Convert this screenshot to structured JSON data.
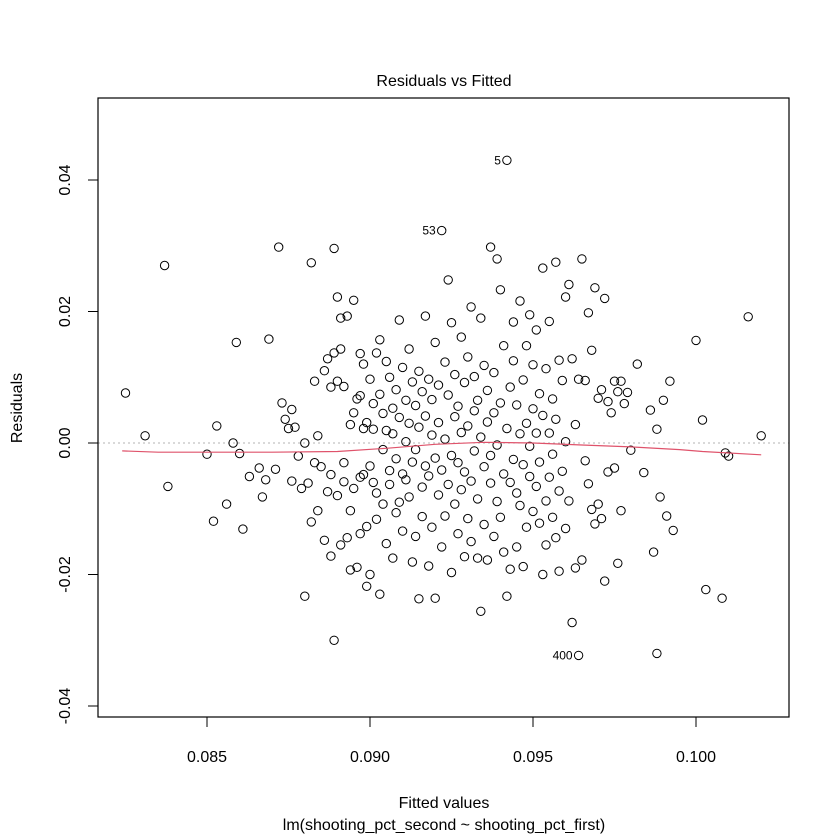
{
  "chart_data": {
    "type": "scatter",
    "title": "Residuals vs Fitted",
    "xlabel": "Fitted values",
    "sub_xlabel": "lm(shooting_pct_second ~ shooting_pct_first)",
    "ylabel": "Residuals",
    "xlim": [
      0.0823,
      0.1027
    ],
    "ylim": [
      -0.0418,
      0.0523
    ],
    "x_ticks": [
      0.085,
      0.09,
      0.095,
      0.1
    ],
    "x_tick_labels": [
      "0.085",
      "0.090",
      "0.095",
      "0.100"
    ],
    "y_ticks": [
      -0.04,
      -0.02,
      0.0,
      0.02,
      0.04
    ],
    "y_tick_labels": [
      "-0.04",
      "-0.02",
      "0.00",
      "0.02",
      "0.04"
    ],
    "grid": false,
    "reference_line": {
      "y": 0.0,
      "style": "dotted",
      "color": "#b3b3b3"
    },
    "smooth_line": {
      "color": "#DF536B",
      "x": [
        0.0824,
        0.0835,
        0.085,
        0.087,
        0.089,
        0.0905,
        0.092,
        0.0935,
        0.095,
        0.0965,
        0.098,
        0.0995,
        0.1002,
        0.102
      ],
      "y": [
        -0.0012,
        -0.0014,
        -0.0014,
        -0.0014,
        -0.0013,
        -0.0008,
        -0.0002,
        0.0001,
        0.0,
        -0.0003,
        -0.0006,
        -0.001,
        -0.0013,
        -0.0018
      ]
    },
    "outlier_labels": [
      {
        "label": "5",
        "x": 0.0942,
        "y": 0.043
      },
      {
        "label": "53",
        "x": 0.0922,
        "y": 0.0323
      },
      {
        "label": "400",
        "x": 0.0964,
        "y": -0.0323
      }
    ],
    "points": [
      [
        0.0825,
        0.0076
      ],
      [
        0.0831,
        0.0011
      ],
      [
        0.0837,
        0.027
      ],
      [
        0.0838,
        -0.0066
      ],
      [
        0.085,
        -0.0017
      ],
      [
        0.0852,
        -0.0119
      ],
      [
        0.0853,
        0.0026
      ],
      [
        0.0856,
        -0.0093
      ],
      [
        0.0858,
        0.0
      ],
      [
        0.0859,
        0.0153
      ],
      [
        0.086,
        -0.0016
      ],
      [
        0.0861,
        -0.0131
      ],
      [
        0.0863,
        -0.0051
      ],
      [
        0.0866,
        -0.0038
      ],
      [
        0.0867,
        -0.0082
      ],
      [
        0.0868,
        -0.0056
      ],
      [
        0.0869,
        0.0158
      ],
      [
        0.0871,
        -0.004
      ],
      [
        0.0872,
        0.0298
      ],
      [
        0.0873,
        0.0061
      ],
      [
        0.0874,
        0.0036
      ],
      [
        0.0875,
        0.0022
      ],
      [
        0.0876,
        0.0051
      ],
      [
        0.0876,
        -0.0058
      ],
      [
        0.0877,
        0.0024
      ],
      [
        0.0878,
        -0.002
      ],
      [
        0.0879,
        -0.0069
      ],
      [
        0.088,
        0.0
      ],
      [
        0.088,
        -0.0233
      ],
      [
        0.0881,
        -0.0061
      ],
      [
        0.0882,
        -0.012
      ],
      [
        0.0882,
        0.0274
      ],
      [
        0.0883,
        0.0094
      ],
      [
        0.0883,
        -0.003
      ],
      [
        0.0884,
        0.0011
      ],
      [
        0.0884,
        -0.0103
      ],
      [
        0.0885,
        -0.0036
      ],
      [
        0.0886,
        -0.0148
      ],
      [
        0.0886,
        0.011
      ],
      [
        0.0887,
        0.0128
      ],
      [
        0.0887,
        -0.0074
      ],
      [
        0.0888,
        -0.0172
      ],
      [
        0.0888,
        -0.0048
      ],
      [
        0.0888,
        0.0085
      ],
      [
        0.0889,
        0.0137
      ],
      [
        0.0889,
        0.0296
      ],
      [
        0.0889,
        -0.03
      ],
      [
        0.089,
        0.0222
      ],
      [
        0.089,
        -0.008
      ],
      [
        0.089,
        0.0094
      ],
      [
        0.0891,
        0.019
      ],
      [
        0.0891,
        -0.0155
      ],
      [
        0.0891,
        0.0143
      ],
      [
        0.0892,
        -0.003
      ],
      [
        0.0892,
        0.0086
      ],
      [
        0.0892,
        -0.0059
      ],
      [
        0.0893,
        0.0193
      ],
      [
        0.0893,
        -0.0144
      ],
      [
        0.0894,
        -0.0193
      ],
      [
        0.0894,
        0.0028
      ],
      [
        0.0894,
        -0.0103
      ],
      [
        0.0895,
        0.0217
      ],
      [
        0.0895,
        0.0046
      ],
      [
        0.0895,
        -0.0069
      ],
      [
        0.0896,
        0.0067
      ],
      [
        0.0896,
        -0.0189
      ],
      [
        0.0897,
        0.0136
      ],
      [
        0.0897,
        -0.0052
      ],
      [
        0.0897,
        -0.0138
      ],
      [
        0.0897,
        0.0072
      ],
      [
        0.0898,
        0.0022
      ],
      [
        0.0898,
        -0.0048
      ],
      [
        0.0898,
        0.012
      ],
      [
        0.0899,
        -0.0218
      ],
      [
        0.0899,
        0.0031
      ],
      [
        0.0899,
        -0.0127
      ],
      [
        0.09,
        -0.0035
      ],
      [
        0.09,
        0.0097
      ],
      [
        0.09,
        -0.02
      ],
      [
        0.0901,
        0.006
      ],
      [
        0.0901,
        -0.006
      ],
      [
        0.0901,
        0.0021
      ],
      [
        0.0902,
        -0.0116
      ],
      [
        0.0902,
        0.0137
      ],
      [
        0.0902,
        -0.0076
      ],
      [
        0.0903,
        -0.023
      ],
      [
        0.0903,
        0.0074
      ],
      [
        0.0903,
        0.0157
      ],
      [
        0.0904,
        -0.001
      ],
      [
        0.0904,
        0.0045
      ],
      [
        0.0904,
        -0.0093
      ],
      [
        0.0905,
        0.0124
      ],
      [
        0.0905,
        -0.0153
      ],
      [
        0.0905,
        0.0019
      ],
      [
        0.0906,
        -0.0042
      ],
      [
        0.0906,
        0.01
      ],
      [
        0.0906,
        -0.0063
      ],
      [
        0.0907,
        0.0014
      ],
      [
        0.0907,
        -0.0175
      ],
      [
        0.0907,
        0.0053
      ],
      [
        0.0908,
        -0.0106
      ],
      [
        0.0908,
        0.0081
      ],
      [
        0.0908,
        -0.0024
      ],
      [
        0.0909,
        0.0187
      ],
      [
        0.0909,
        -0.009
      ],
      [
        0.0909,
        0.0039
      ],
      [
        0.091,
        -0.0047
      ],
      [
        0.091,
        0.0115
      ],
      [
        0.091,
        -0.0134
      ],
      [
        0.0911,
        0.0002
      ],
      [
        0.0911,
        0.0065
      ],
      [
        0.0911,
        -0.0056
      ],
      [
        0.0912,
        0.0143
      ],
      [
        0.0912,
        -0.0082
      ],
      [
        0.0912,
        0.003
      ],
      [
        0.0913,
        -0.0181
      ],
      [
        0.0913,
        0.0093
      ],
      [
        0.0913,
        -0.0029
      ],
      [
        0.0914,
        0.0057
      ],
      [
        0.0914,
        -0.0142
      ],
      [
        0.0914,
        -0.001
      ],
      [
        0.0915,
        0.0109
      ],
      [
        0.0915,
        -0.0237
      ],
      [
        0.0915,
        0.0024
      ],
      [
        0.0916,
        -0.0067
      ],
      [
        0.0916,
        0.0078
      ],
      [
        0.0916,
        -0.0112
      ],
      [
        0.0917,
        0.0193
      ],
      [
        0.0917,
        -0.0035
      ],
      [
        0.0917,
        0.0041
      ],
      [
        0.0918,
        -0.0187
      ],
      [
        0.0918,
        0.0097
      ],
      [
        0.0918,
        -0.005
      ],
      [
        0.0919,
        0.0012
      ],
      [
        0.0919,
        -0.0128
      ],
      [
        0.0919,
        0.0066
      ],
      [
        0.092,
        -0.0236
      ],
      [
        0.092,
        0.0153
      ],
      [
        0.092,
        -0.0023
      ],
      [
        0.0921,
        0.0088
      ],
      [
        0.0921,
        -0.0079
      ],
      [
        0.0921,
        0.0031
      ],
      [
        0.0922,
        -0.0158
      ],
      [
        0.0922,
        0.0323
      ],
      [
        0.0922,
        -0.0041
      ],
      [
        0.0923,
        0.0123
      ],
      [
        0.0923,
        -0.0111
      ],
      [
        0.0923,
        0.0006
      ],
      [
        0.0924,
        0.0248
      ],
      [
        0.0924,
        -0.0063
      ],
      [
        0.0924,
        0.0073
      ],
      [
        0.0925,
        -0.0197
      ],
      [
        0.0925,
        0.0183
      ],
      [
        0.0925,
        -0.0019
      ],
      [
        0.0926,
        0.0104
      ],
      [
        0.0926,
        -0.0093
      ],
      [
        0.0926,
        0.004
      ],
      [
        0.0927,
        -0.0138
      ],
      [
        0.0927,
        0.0056
      ],
      [
        0.0927,
        -0.003
      ],
      [
        0.0928,
        0.0161
      ],
      [
        0.0928,
        -0.0071
      ],
      [
        0.0928,
        0.0016
      ],
      [
        0.0929,
        -0.0173
      ],
      [
        0.0929,
        0.0092
      ],
      [
        0.0929,
        -0.0044
      ],
      [
        0.093,
        0.0131
      ],
      [
        0.093,
        -0.0115
      ],
      [
        0.093,
        0.0026
      ],
      [
        0.0931,
        -0.0058
      ],
      [
        0.0931,
        0.0207
      ],
      [
        0.0931,
        -0.015
      ],
      [
        0.0932,
        0.0049
      ],
      [
        0.0932,
        -0.0012
      ],
      [
        0.0932,
        0.0101
      ],
      [
        0.0933,
        -0.0175
      ],
      [
        0.0933,
        0.0065
      ],
      [
        0.0933,
        -0.0085
      ],
      [
        0.0934,
        0.019
      ],
      [
        0.0934,
        -0.0256
      ],
      [
        0.0934,
        0.0009
      ],
      [
        0.0935,
        -0.0036
      ],
      [
        0.0935,
        0.0118
      ],
      [
        0.0935,
        -0.0124
      ],
      [
        0.0936,
        0.0032
      ],
      [
        0.0936,
        -0.0178
      ],
      [
        0.0936,
        0.008
      ],
      [
        0.0937,
        -0.0061
      ],
      [
        0.0937,
        0.0298
      ],
      [
        0.0937,
        -0.0019
      ],
      [
        0.0938,
        0.0107
      ],
      [
        0.0938,
        -0.0142
      ],
      [
        0.0938,
        0.0046
      ],
      [
        0.0939,
        -0.0089
      ],
      [
        0.0939,
        0.028
      ],
      [
        0.0939,
        -0.0003
      ],
      [
        0.094,
        0.0233
      ],
      [
        0.094,
        -0.0113
      ],
      [
        0.094,
        0.0061
      ],
      [
        0.0941,
        -0.0166
      ],
      [
        0.0941,
        0.0148
      ],
      [
        0.0941,
        -0.0047
      ],
      [
        0.0942,
        0.043
      ],
      [
        0.0942,
        -0.0233
      ],
      [
        0.0942,
        0.0022
      ],
      [
        0.0943,
        0.0085
      ],
      [
        0.0943,
        -0.0192
      ],
      [
        0.0943,
        -0.006
      ],
      [
        0.0944,
        0.0184
      ],
      [
        0.0944,
        -0.0025
      ],
      [
        0.0944,
        0.0125
      ],
      [
        0.0945,
        -0.0076
      ],
      [
        0.0945,
        0.0058
      ],
      [
        0.0945,
        -0.0158
      ],
      [
        0.0946,
        0.0014
      ],
      [
        0.0946,
        0.0216
      ],
      [
        0.0946,
        -0.0095
      ],
      [
        0.0947,
        0.0096
      ],
      [
        0.0947,
        -0.0188
      ],
      [
        0.0947,
        -0.0033
      ],
      [
        0.0948,
        0.0148
      ],
      [
        0.0948,
        -0.0128
      ],
      [
        0.0948,
        0.003
      ],
      [
        0.0949,
        -0.0051
      ],
      [
        0.0949,
        0.0195
      ],
      [
        0.0949,
        -0.0005
      ],
      [
        0.095,
        0.0052
      ],
      [
        0.095,
        -0.0104
      ],
      [
        0.095,
        0.0119
      ],
      [
        0.0951,
        -0.0066
      ],
      [
        0.0951,
        0.0172
      ],
      [
        0.0951,
        0.0015
      ],
      [
        0.0952,
        -0.0122
      ],
      [
        0.0952,
        0.0075
      ],
      [
        0.0952,
        -0.0029
      ],
      [
        0.0953,
        -0.02
      ],
      [
        0.0953,
        0.0266
      ],
      [
        0.0953,
        0.0042
      ],
      [
        0.0954,
        -0.0088
      ],
      [
        0.0954,
        0.0113
      ],
      [
        0.0954,
        -0.0155
      ],
      [
        0.0955,
        0.0015
      ],
      [
        0.0955,
        -0.0052
      ],
      [
        0.0955,
        0.0185
      ],
      [
        0.0956,
        -0.0113
      ],
      [
        0.0956,
        0.0067
      ],
      [
        0.0956,
        -0.0017
      ],
      [
        0.0957,
        0.0275
      ],
      [
        0.0957,
        -0.0144
      ],
      [
        0.0957,
        0.0036
      ],
      [
        0.0958,
        -0.0073
      ],
      [
        0.0958,
        0.0126
      ],
      [
        0.0958,
        -0.0195
      ],
      [
        0.0959,
        0.0095
      ],
      [
        0.0959,
        -0.0043
      ],
      [
        0.096,
        0.0222
      ],
      [
        0.096,
        -0.013
      ],
      [
        0.096,
        0.0002
      ],
      [
        0.0961,
        0.0241
      ],
      [
        0.0961,
        -0.0088
      ],
      [
        0.0962,
        0.0128
      ],
      [
        0.0962,
        -0.0273
      ],
      [
        0.0963,
        0.0028
      ],
      [
        0.0963,
        -0.019
      ],
      [
        0.0964,
        0.0097
      ],
      [
        0.0964,
        -0.0323
      ],
      [
        0.0965,
        -0.0178
      ],
      [
        0.0965,
        0.028
      ],
      [
        0.0966,
        0.0095
      ],
      [
        0.0966,
        -0.0027
      ],
      [
        0.0967,
        0.0198
      ],
      [
        0.0967,
        -0.0062
      ],
      [
        0.0968,
        0.0141
      ],
      [
        0.0968,
        -0.0101
      ],
      [
        0.0969,
        0.0236
      ],
      [
        0.0969,
        -0.0123
      ],
      [
        0.097,
        0.0068
      ],
      [
        0.097,
        -0.0093
      ],
      [
        0.0971,
        0.0081
      ],
      [
        0.0971,
        -0.0115
      ],
      [
        0.0972,
        0.022
      ],
      [
        0.0972,
        -0.021
      ],
      [
        0.0973,
        0.0063
      ],
      [
        0.0973,
        -0.0044
      ],
      [
        0.0974,
        0.0046
      ],
      [
        0.0975,
        0.0094
      ],
      [
        0.0975,
        -0.0038
      ],
      [
        0.0976,
        0.0078
      ],
      [
        0.0976,
        -0.0183
      ],
      [
        0.0977,
        0.0094
      ],
      [
        0.0977,
        -0.0103
      ],
      [
        0.0978,
        0.006
      ],
      [
        0.0979,
        0.0077
      ],
      [
        0.098,
        -0.0011
      ],
      [
        0.0982,
        0.012
      ],
      [
        0.0984,
        -0.0045
      ],
      [
        0.0986,
        0.005
      ],
      [
        0.0987,
        -0.0166
      ],
      [
        0.0988,
        0.0021
      ],
      [
        0.0988,
        -0.032
      ],
      [
        0.0989,
        -0.0082
      ],
      [
        0.099,
        0.0065
      ],
      [
        0.0991,
        -0.0111
      ],
      [
        0.0992,
        0.0094
      ],
      [
        0.0993,
        -0.0133
      ],
      [
        0.1,
        0.0156
      ],
      [
        0.1002,
        0.0035
      ],
      [
        0.1003,
        -0.0223
      ],
      [
        0.1008,
        -0.0236
      ],
      [
        0.1009,
        -0.0015
      ],
      [
        0.101,
        -0.002
      ],
      [
        0.1016,
        0.0192
      ],
      [
        0.102,
        0.0011
      ]
    ]
  }
}
